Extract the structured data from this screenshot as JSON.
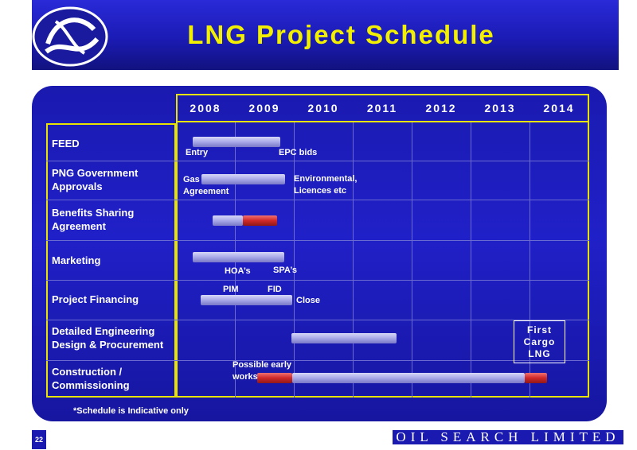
{
  "header": {
    "title": "LNG Project Schedule"
  },
  "years": [
    "2008",
    "2009",
    "2010",
    "2011",
    "2012",
    "2013",
    "2014"
  ],
  "rows": [
    {
      "label": "FEED"
    },
    {
      "label": "PNG Government Approvals"
    },
    {
      "label": "Benefits Sharing Agreement"
    },
    {
      "label": "Marketing"
    },
    {
      "label": "Project Financing"
    },
    {
      "label": "Detailed Engineering Design & Procurement"
    },
    {
      "label": "Construction / Commissioning"
    }
  ],
  "notes": {
    "entry": "Entry",
    "epc_bids": "EPC bids",
    "gas": "Gas",
    "agreement": "Agreement",
    "environmental": "Environmental,",
    "licences": "Licences etc",
    "hoas": "HOA’s",
    "spas": "SPA’s",
    "pim": "PIM",
    "fid": "FID",
    "close": "Close",
    "possible_early": "Possible early",
    "works": "works"
  },
  "cargo": {
    "l1": "First",
    "l2": "Cargo",
    "l3": "LNG"
  },
  "footnote": "*Schedule is Indicative only",
  "page_number": "22",
  "brand": "OIL SEARCH LIMITED",
  "colors": {
    "banner": "#1b1bb5",
    "title": "#f2f000",
    "grid_border": "#e8e400",
    "bar": "#a8a8e8",
    "bar_red": "#d02828"
  }
}
